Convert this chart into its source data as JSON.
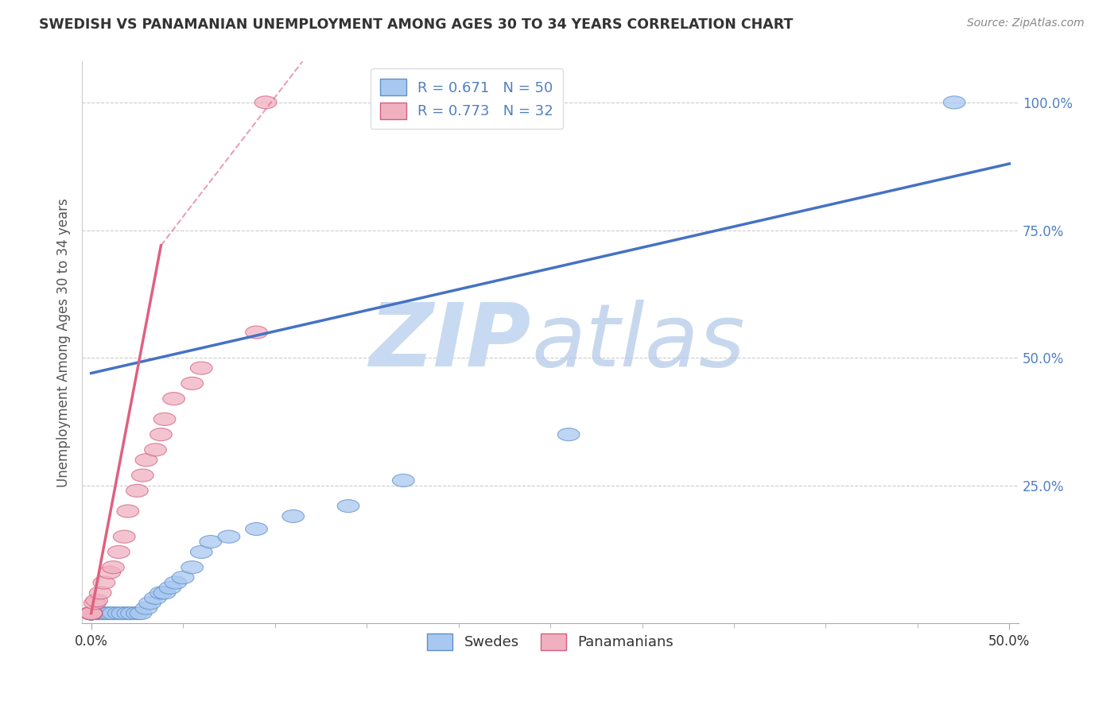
{
  "title": "SWEDISH VS PANAMANIAN UNEMPLOYMENT AMONG AGES 30 TO 34 YEARS CORRELATION CHART",
  "source": "Source: ZipAtlas.com",
  "xlim": [
    -0.005,
    0.505
  ],
  "ylim": [
    -0.02,
    1.08
  ],
  "watermark_zip": "ZIP",
  "watermark_atlas": "atlas",
  "legend_label1": "Swedes",
  "legend_label2": "Panamanians",
  "r1": 0.671,
  "n1": 50,
  "r2": 0.773,
  "n2": 32,
  "blue_scatter_color": "#a8c8f0",
  "blue_edge_color": "#6090c8",
  "pink_scatter_color": "#f0b0c0",
  "pink_edge_color": "#d06080",
  "blue_line_color": "#4472c4",
  "pink_line_color": "#e06080",
  "ytick_color": "#5080c0",
  "xtick_color": "#333333",
  "ylabel_color": "#555555",
  "swedes_x": [
    0.0,
    0.0,
    0.0,
    0.0,
    0.0,
    0.0,
    0.0,
    0.0,
    0.0,
    0.0,
    0.0,
    0.0,
    0.0,
    0.0,
    0.0,
    0.0,
    0.0,
    0.0,
    0.0,
    0.0,
    0.003,
    0.004,
    0.006,
    0.008,
    0.01,
    0.012,
    0.015,
    0.017,
    0.02,
    0.022,
    0.025,
    0.027,
    0.03,
    0.032,
    0.035,
    0.038,
    0.04,
    0.043,
    0.046,
    0.05,
    0.055,
    0.06,
    0.065,
    0.075,
    0.09,
    0.11,
    0.14,
    0.17,
    0.26,
    0.47
  ],
  "swedes_y": [
    0.0,
    0.0,
    0.0,
    0.0,
    0.0,
    0.0,
    0.0,
    0.0,
    0.0,
    0.0,
    0.0,
    0.0,
    0.0,
    0.0,
    0.0,
    0.0,
    0.0,
    0.0,
    0.0,
    0.0,
    0.0,
    0.0,
    0.0,
    0.0,
    0.0,
    0.0,
    0.0,
    0.0,
    0.0,
    0.0,
    0.0,
    0.0,
    0.01,
    0.02,
    0.03,
    0.04,
    0.04,
    0.05,
    0.06,
    0.07,
    0.09,
    0.12,
    0.14,
    0.15,
    0.165,
    0.19,
    0.21,
    0.26,
    0.35,
    1.0
  ],
  "panamanians_x": [
    0.0,
    0.0,
    0.0,
    0.0,
    0.0,
    0.0,
    0.0,
    0.0,
    0.0,
    0.0,
    0.0,
    0.0,
    0.002,
    0.003,
    0.005,
    0.007,
    0.01,
    0.012,
    0.015,
    0.018,
    0.02,
    0.025,
    0.028,
    0.03,
    0.035,
    0.038,
    0.04,
    0.045,
    0.055,
    0.06,
    0.09,
    0.095
  ],
  "panamanians_y": [
    0.0,
    0.0,
    0.0,
    0.0,
    0.0,
    0.0,
    0.0,
    0.0,
    0.0,
    0.0,
    0.0,
    0.0,
    0.02,
    0.025,
    0.04,
    0.06,
    0.08,
    0.09,
    0.12,
    0.15,
    0.2,
    0.24,
    0.27,
    0.3,
    0.32,
    0.35,
    0.38,
    0.42,
    0.45,
    0.48,
    0.55,
    1.0
  ],
  "blue_line_x0": 0.0,
  "blue_line_y0": 0.47,
  "blue_line_x1": 0.5,
  "blue_line_y1": 0.88,
  "pink_line_solid_x0": 0.0,
  "pink_line_solid_y0": 0.0,
  "pink_line_solid_x1": 0.038,
  "pink_line_solid_y1": 0.72,
  "pink_line_dash_x0": 0.038,
  "pink_line_dash_y0": 0.72,
  "pink_line_dash_x1": 0.115,
  "pink_line_dash_y1": 1.08
}
